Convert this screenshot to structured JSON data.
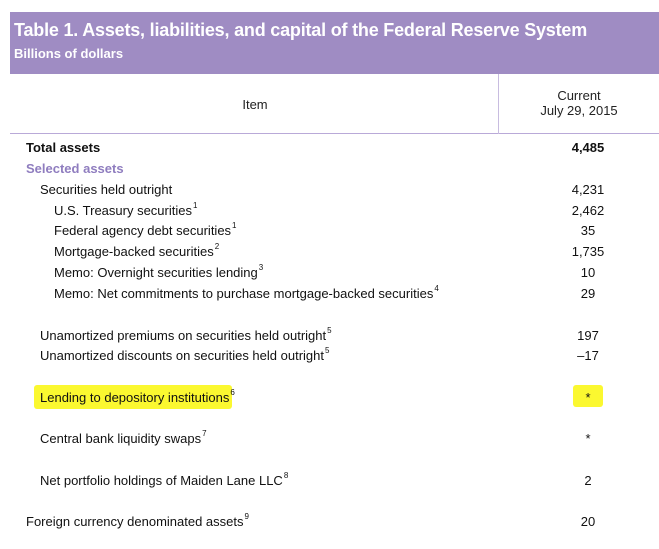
{
  "header": {
    "title": "Table 1. Assets, liabilities, and capital of the Federal Reserve System",
    "subtitle": "Billions of dollars",
    "col_item": "Item",
    "col_current_line1": "Current",
    "col_current_line2": "July 29, 2015"
  },
  "rows": [
    {
      "label": "Total assets",
      "sup": "",
      "value": "4,485"
    },
    {
      "label": "Selected assets",
      "sup": "",
      "value": ""
    },
    {
      "label": "Securities held outright",
      "sup": "",
      "value": "4,231"
    },
    {
      "label": "U.S. Treasury securities",
      "sup": "1",
      "value": "2,462"
    },
    {
      "label": "Federal agency debt securities",
      "sup": "1",
      "value": "35"
    },
    {
      "label": "Mortgage-backed securities",
      "sup": "2",
      "value": "1,735"
    },
    {
      "label": "Memo: Overnight securities lending",
      "sup": "3",
      "value": "10"
    },
    {
      "label": "Memo: Net commitments to purchase mortgage-backed securities",
      "sup": "4",
      "value": "29"
    },
    {
      "label": "Unamortized premiums on securities held outright",
      "sup": "5",
      "value": "197"
    },
    {
      "label": "Unamortized discounts on securities held outright",
      "sup": "5",
      "value": "–17"
    },
    {
      "label": "Lending to depository institutions",
      "sup": "6",
      "value": "*"
    },
    {
      "label": "Central bank liquidity swaps",
      "sup": "7",
      "value": "*"
    },
    {
      "label": "Net portfolio holdings of Maiden Lane LLC",
      "sup": "8",
      "value": "2"
    },
    {
      "label": "Foreign currency denominated assets",
      "sup": "9",
      "value": "20"
    }
  ],
  "highlight_color": "#fbf830",
  "accent_color": "#9f8cc3"
}
